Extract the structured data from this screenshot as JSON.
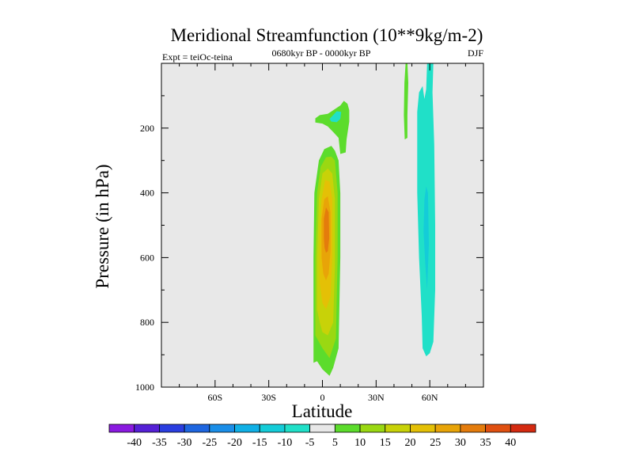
{
  "chart_data": {
    "type": "heatmap",
    "title": "Meridional Streamfunction (10**9kg/m-2)",
    "left_label": "Expt = teiOc-teina",
    "center_label": "0680kyr BP - 0000kyr BP",
    "right_label": "DJF",
    "xlabel": "Latitude",
    "ylabel": "Pressure (in hPa)",
    "xlim": [
      -90,
      90
    ],
    "ylim": [
      1000,
      0
    ],
    "x_ticks": [
      {
        "value": -60,
        "label": "60S"
      },
      {
        "value": -30,
        "label": "30S"
      },
      {
        "value": 0,
        "label": "0"
      },
      {
        "value": 30,
        "label": "30N"
      },
      {
        "value": 60,
        "label": "60N"
      }
    ],
    "y_ticks": [
      {
        "value": 200,
        "label": "200"
      },
      {
        "value": 400,
        "label": "400"
      },
      {
        "value": 600,
        "label": "600"
      },
      {
        "value": 800,
        "label": "800"
      },
      {
        "value": 1000,
        "label": "1000"
      }
    ],
    "background_fill": "#e8e8e8",
    "colorbar": {
      "levels": [
        -40,
        -35,
        -30,
        -25,
        -20,
        -15,
        -10,
        -5,
        5,
        10,
        15,
        20,
        25,
        30,
        35,
        40
      ],
      "colors": [
        "#8a1ae0",
        "#5520d6",
        "#2a3ee0",
        "#1e66e0",
        "#1a8ee8",
        "#10b0e6",
        "#14ccd8",
        "#20e0c8",
        "#e8e8e8",
        "#5cdc2c",
        "#9ad812",
        "#c8d208",
        "#e4c006",
        "#e8a408",
        "#e47c0c",
        "#e05010",
        "#d42a10"
      ]
    },
    "regions": [
      {
        "name": "tropical-cell-bin-5-10",
        "color": "#5cdc2c",
        "points": [
          [
            -5,
            925
          ],
          [
            -5,
            600
          ],
          [
            -4.5,
            400
          ],
          [
            -2,
            300
          ],
          [
            1,
            265
          ],
          [
            5,
            255
          ],
          [
            7,
            270
          ],
          [
            9,
            300
          ],
          [
            10,
            400
          ],
          [
            10,
            600
          ],
          [
            9,
            880
          ],
          [
            6,
            940
          ],
          [
            4,
            965
          ],
          [
            0,
            945
          ],
          [
            -3,
            920
          ]
        ]
      },
      {
        "name": "tropical-cell-bin-10-15",
        "color": "#9ad812",
        "points": [
          [
            -4,
            840
          ],
          [
            -4,
            600
          ],
          [
            -3,
            400
          ],
          [
            -1,
            320
          ],
          [
            2,
            290
          ],
          [
            5,
            288
          ],
          [
            7,
            300
          ],
          [
            8.5,
            400
          ],
          [
            8.5,
            600
          ],
          [
            7.5,
            850
          ],
          [
            4,
            910
          ],
          [
            0,
            880
          ],
          [
            -2,
            860
          ]
        ]
      },
      {
        "name": "tropical-cell-bin-15-20",
        "color": "#c8d208",
        "points": [
          [
            -3,
            760
          ],
          [
            -3,
            600
          ],
          [
            -2,
            420
          ],
          [
            0,
            340
          ],
          [
            3,
            325
          ],
          [
            5.5,
            340
          ],
          [
            7,
            420
          ],
          [
            7,
            620
          ],
          [
            6,
            800
          ],
          [
            3,
            840
          ],
          [
            0,
            830
          ],
          [
            -1.5,
            800
          ]
        ]
      },
      {
        "name": "tropical-cell-bin-20-25",
        "color": "#e4c006",
        "points": [
          [
            -1.5,
            680
          ],
          [
            -1.5,
            520
          ],
          [
            -0.5,
            420
          ],
          [
            1.5,
            360
          ],
          [
            4,
            365
          ],
          [
            5.5,
            420
          ],
          [
            5.5,
            600
          ],
          [
            4.5,
            720
          ],
          [
            2,
            760
          ],
          [
            0,
            740
          ]
        ]
      },
      {
        "name": "tropical-cell-bin-25-30",
        "color": "#e8a408",
        "points": [
          [
            -0.5,
            600
          ],
          [
            -0.5,
            480
          ],
          [
            1,
            420
          ],
          [
            3,
            410
          ],
          [
            4.5,
            460
          ],
          [
            4.5,
            580
          ],
          [
            3.5,
            650
          ],
          [
            2,
            670
          ],
          [
            0.5,
            650
          ]
        ]
      },
      {
        "name": "tropical-cell-bin-30-35",
        "color": "#e47c0c",
        "points": [
          [
            0.8,
            540
          ],
          [
            0.8,
            480
          ],
          [
            2,
            445
          ],
          [
            3.5,
            460
          ],
          [
            3.8,
            540
          ],
          [
            3,
            580
          ],
          [
            2,
            585
          ],
          [
            1.2,
            570
          ]
        ]
      },
      {
        "name": "upper-tropics-cell",
        "color": "#5cdc2c",
        "points": [
          [
            -4,
            170
          ],
          [
            -1.5,
            160
          ],
          [
            3,
            156
          ],
          [
            10,
            130
          ],
          [
            12,
            116
          ],
          [
            14,
            125
          ],
          [
            15,
            145
          ],
          [
            15,
            180
          ],
          [
            13.5,
            235
          ],
          [
            13,
            275
          ],
          [
            10,
            280
          ],
          [
            9,
            230
          ],
          [
            6,
            212
          ],
          [
            3,
            195
          ],
          [
            0,
            186
          ],
          [
            -4,
            183
          ]
        ]
      },
      {
        "name": "upper-tropics-inner",
        "color": "#20e0c8",
        "points": [
          [
            4,
            172
          ],
          [
            8,
            148
          ],
          [
            10.5,
            150
          ],
          [
            10,
            172
          ],
          [
            8,
            182
          ],
          [
            5,
            180
          ]
        ]
      },
      {
        "name": "northern-cell-strip",
        "color": "#5cdc2c",
        "points": [
          [
            46.5,
            0
          ],
          [
            47.5,
            0
          ],
          [
            48,
            60
          ],
          [
            47.5,
            160
          ],
          [
            47.5,
            230
          ],
          [
            46,
            235
          ],
          [
            45.5,
            160
          ],
          [
            45.8,
            60
          ]
        ]
      },
      {
        "name": "northern-cell-bin--5--10",
        "color": "#20e0c8",
        "points": [
          [
            54,
            90
          ],
          [
            56,
            70
          ],
          [
            57,
            110
          ],
          [
            58,
            80
          ],
          [
            58.5,
            0
          ],
          [
            62,
            0
          ],
          [
            61.5,
            90
          ],
          [
            62.5,
            250
          ],
          [
            63,
            500
          ],
          [
            63,
            700
          ],
          [
            62,
            860
          ],
          [
            60,
            895
          ],
          [
            58,
            905
          ],
          [
            56,
            880
          ],
          [
            55.5,
            780
          ],
          [
            54,
            600
          ],
          [
            53,
            400
          ],
          [
            53,
            240
          ],
          [
            53,
            150
          ]
        ]
      },
      {
        "name": "northern-cell-bin--10--15",
        "color": "#14ccd8",
        "points": [
          [
            57,
            420
          ],
          [
            58,
            380
          ],
          [
            59,
            400
          ],
          [
            59.5,
            560
          ],
          [
            58.5,
            700
          ],
          [
            57.5,
            620
          ],
          [
            56.5,
            520
          ]
        ]
      }
    ]
  }
}
